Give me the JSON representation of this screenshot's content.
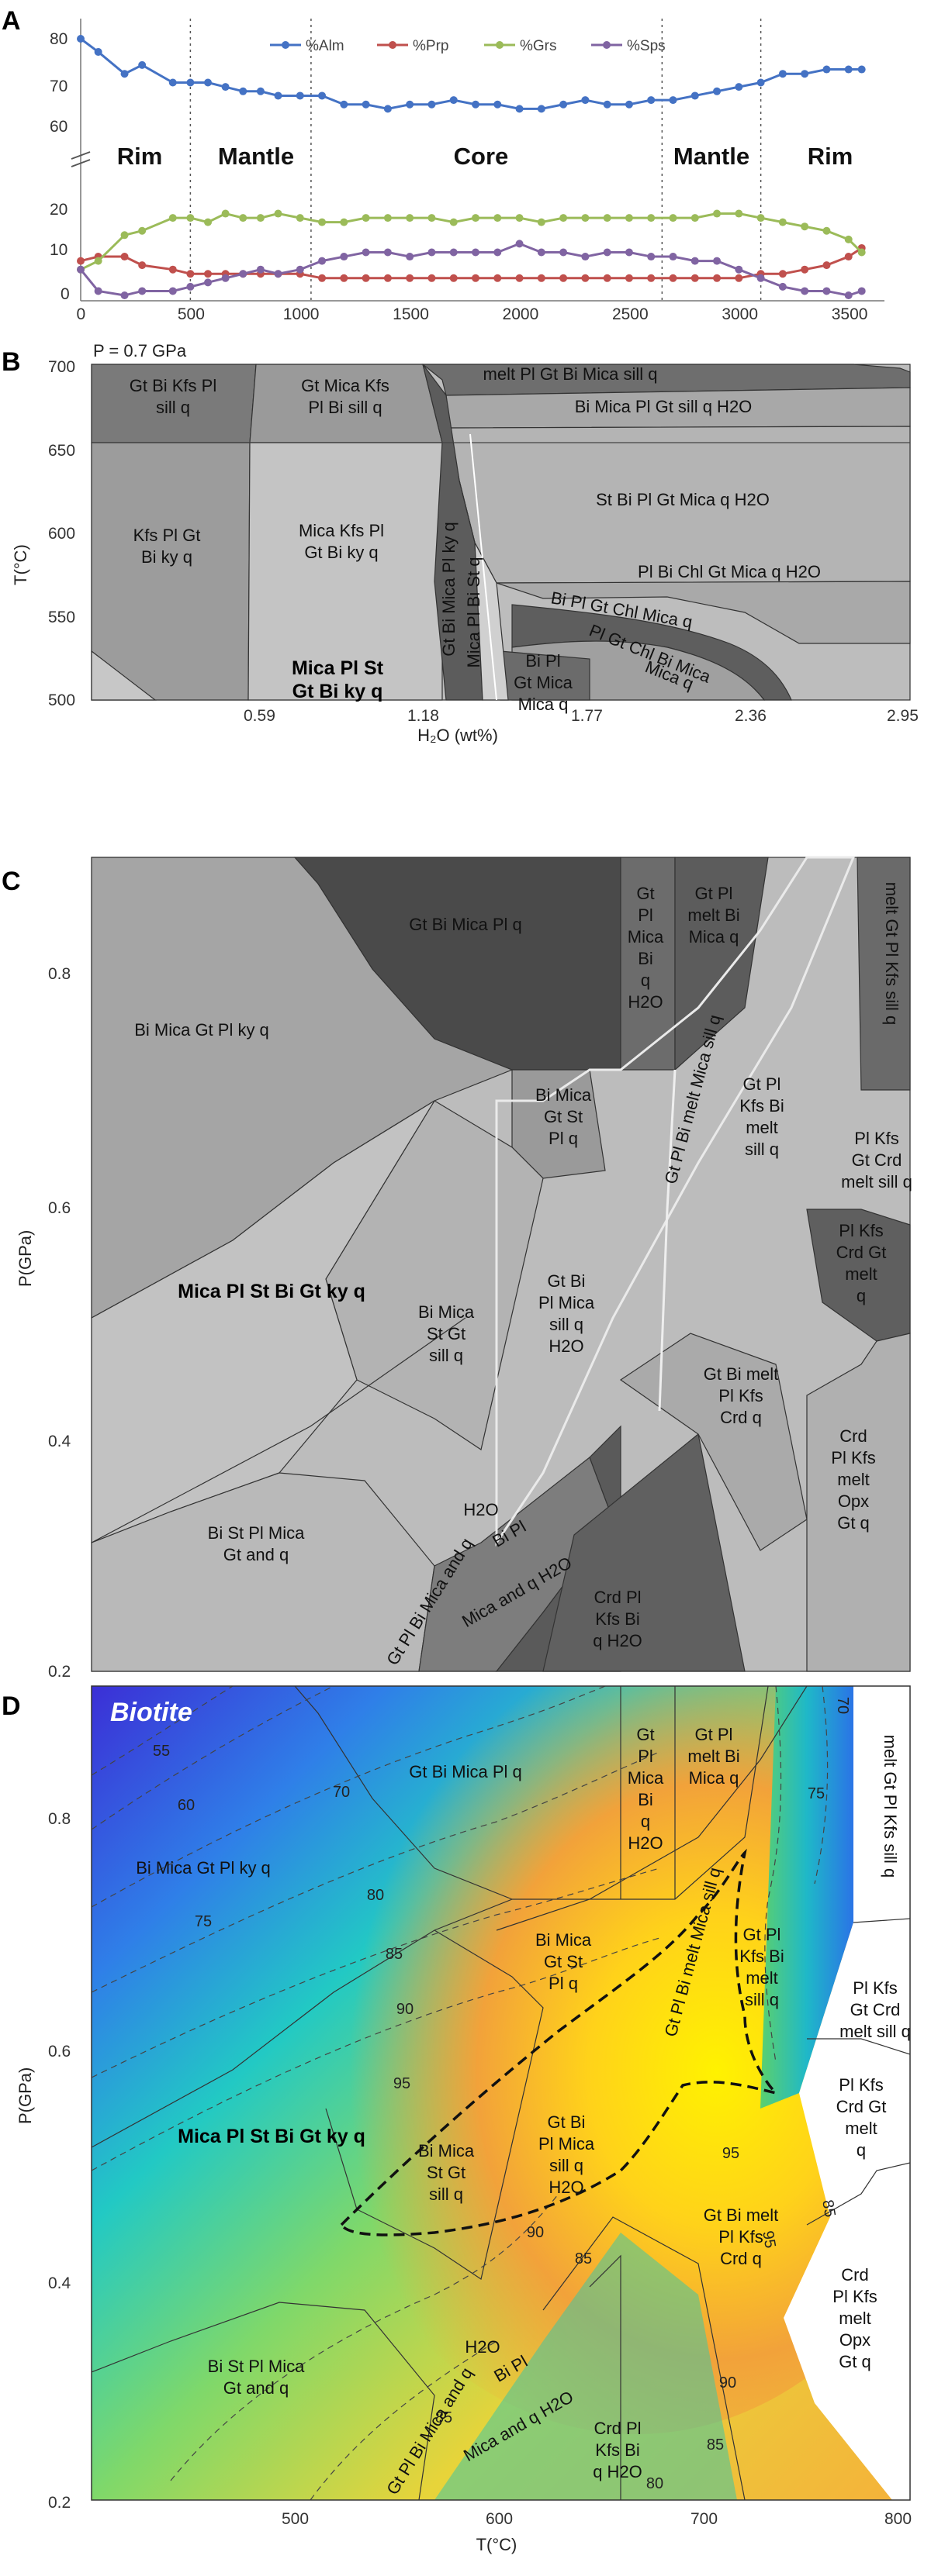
{
  "chart_data": [
    {
      "panel": "A",
      "type": "line",
      "xlabel": "",
      "xlim": [
        0,
        3600
      ],
      "x_ticks": [
        "0",
        "500",
        "1000",
        "1500",
        "2000",
        "2500",
        "3000",
        "3500"
      ],
      "upper_y_ticks": [
        "60",
        "70",
        "80"
      ],
      "lower_y_ticks": [
        "0",
        "10",
        "20"
      ],
      "zones": [
        "Rim",
        "Mantle",
        "Core",
        "Mantle",
        "Rim"
      ],
      "zone_boundaries": [
        500,
        1050,
        2650,
        3100
      ],
      "x": [
        0,
        80,
        200,
        280,
        420,
        500,
        580,
        660,
        740,
        820,
        900,
        1000,
        1100,
        1200,
        1300,
        1400,
        1500,
        1600,
        1700,
        1800,
        1900,
        2000,
        2100,
        2200,
        2300,
        2400,
        2500,
        2600,
        2700,
        2800,
        2900,
        3000,
        3100,
        3200,
        3300,
        3400,
        3500,
        3560
      ],
      "series": [
        {
          "name": "%Alm",
          "color": "#4472c4",
          "values": [
            80,
            77,
            72,
            74,
            70,
            70,
            70,
            69,
            68,
            68,
            67,
            67,
            67,
            65,
            65,
            64,
            65,
            65,
            66,
            65,
            65,
            64,
            64,
            65,
            66,
            65,
            65,
            66,
            66,
            67,
            68,
            69,
            70,
            72,
            72,
            73,
            73,
            73
          ]
        },
        {
          "name": "%Prp",
          "color": "#c0504d",
          "values": [
            8,
            9,
            9,
            7,
            6,
            5,
            5,
            5,
            5,
            5,
            5,
            5,
            4,
            4,
            4,
            4,
            4,
            4,
            4,
            4,
            4,
            4,
            4,
            4,
            4,
            4,
            4,
            4,
            4,
            4,
            4,
            4,
            5,
            5,
            6,
            7,
            9,
            11
          ]
        },
        {
          "name": "%Grs",
          "color": "#9bbb59",
          "values": [
            6,
            8,
            14,
            15,
            18,
            18,
            17,
            19,
            18,
            18,
            19,
            18,
            17,
            17,
            18,
            18,
            18,
            18,
            17,
            18,
            18,
            18,
            17,
            18,
            18,
            18,
            18,
            18,
            18,
            18,
            19,
            19,
            18,
            17,
            16,
            15,
            13,
            10
          ]
        },
        {
          "name": "%Sps",
          "color": "#8064a2",
          "values": [
            6,
            1,
            0,
            1,
            1,
            2,
            3,
            4,
            5,
            6,
            5,
            6,
            8,
            9,
            10,
            10,
            9,
            10,
            10,
            10,
            10,
            12,
            10,
            10,
            9,
            10,
            10,
            9,
            9,
            8,
            8,
            6,
            4,
            2,
            1,
            1,
            0,
            1
          ]
        }
      ]
    },
    {
      "panel": "B",
      "type": "phase-diagram",
      "title": "P = 0.7 GPa",
      "xlabel": "H₂O (wt%)",
      "ylabel": "T(°C)",
      "xlim": [
        0,
        2.95
      ],
      "ylim": [
        500,
        700
      ],
      "x_ticks": [
        "0.59",
        "1.18",
        "1.77",
        "2.36",
        "2.95"
      ],
      "y_ticks": [
        "500",
        "550",
        "600",
        "650",
        "700"
      ],
      "fields": [
        "Gt Bi Kfs Pl",
        "sill q",
        "Gt Mica Kfs",
        "Pl Bi sill q",
        "melt Pl Gt Bi Mica sill q",
        "Bi Mica Pl Gt sill q H2O",
        "St Bi Pl Gt Mica q H2O",
        "Kfs Pl Gt",
        "Bi ky q",
        "Mica Kfs Pl",
        "Gt Bi ky q",
        "Pl Bi Chl Gt Mica q H2O",
        "Bi Pl Gt Chl Mica q",
        "Pl Gt Chl Bi Mica",
        "Mica q",
        "Bi Pl",
        "Gt Mica",
        "Mica q",
        "Gt Bi Mica Pl ky q",
        "Mica Pl Bi St q",
        "Mica Pl St",
        "Gt Bi ky q"
      ]
    },
    {
      "panel": "C",
      "type": "phase-diagram",
      "xlabel": "",
      "ylabel": "P(GPa)",
      "xlim": [
        400,
        800
      ],
      "ylim": [
        0.2,
        0.9
      ],
      "y_ticks": [
        "0.2",
        "0.4",
        "0.6",
        "0.8"
      ],
      "fields": [
        "Gt Bi Mica Pl q",
        "Gt",
        "Pl",
        "Mica",
        "Bi",
        "q",
        "H2O",
        "Gt Pl",
        "melt Bi",
        "Mica q",
        "melt Gt Pl Kfs sill q",
        "Bi Mica Gt Pl ky q",
        "Bi Mica",
        "Gt St",
        "Pl q",
        "Gt Pl Bi melt Mica sill q",
        "Gt Pl",
        "Kfs Bi",
        "melt",
        "sill q",
        "Pl Kfs",
        "Gt Crd",
        "melt sill q",
        "Pl Kfs",
        "Crd Gt",
        "melt",
        "q",
        "Mica Pl St Bi Gt ky q",
        "Gt Bi",
        "Pl Mica",
        "sill q",
        "H2O",
        "Bi Mica",
        "St Gt",
        "sill q",
        "Gt Bi melt",
        "Pl Kfs",
        "Crd q",
        "Crd",
        "Pl Kfs",
        "melt",
        "Opx",
        "Gt q",
        "Bi St Pl Mica",
        "Gt and q",
        "Gt Pl Bi Mica and q",
        "H2O",
        "Bi Pl",
        "Mica and q H2O",
        "Crd Pl",
        "Kfs Bi",
        "q H2O"
      ]
    },
    {
      "panel": "D",
      "type": "heatmap",
      "title": "Biotite",
      "xlabel": "T(°C)",
      "ylabel": "P(GPa)",
      "xlim": [
        400,
        800
      ],
      "ylim": [
        0.2,
        0.9
      ],
      "x_ticks": [
        "500",
        "600",
        "700",
        "800"
      ],
      "y_ticks": [
        "0.2",
        "0.4",
        "0.6",
        "0.8"
      ],
      "contour_labels": [
        "55",
        "60",
        "70",
        "75",
        "80",
        "85",
        "90",
        "95",
        "95",
        "90",
        "85",
        "85",
        "90",
        "85",
        "80",
        "75",
        "70",
        "85",
        "95"
      ],
      "fields": [
        "Gt Bi Mica Pl q",
        "Gt",
        "Pl",
        "Mica",
        "Bi",
        "q",
        "H2O",
        "Gt Pl",
        "melt Bi",
        "Mica q",
        "melt Gt Pl Kfs sill q",
        "Bi Mica Gt Pl ky q",
        "Bi Mica",
        "Gt St",
        "Pl q",
        "Gt Pl Bi melt Mica sill q",
        "Gt Pl",
        "Kfs Bi",
        "melt",
        "sill q",
        "Pl Kfs",
        "Gt Crd",
        "melt sill q",
        "Pl Kfs",
        "Crd Gt",
        "melt",
        "q",
        "Mica Pl St Bi Gt ky q",
        "Gt Bi",
        "Pl Mica",
        "sill q",
        "H2O",
        "Bi Mica",
        "St Gt",
        "sill q",
        "Gt Bi melt",
        "Pl Kfs",
        "Crd q",
        "Crd",
        "Pl Kfs",
        "melt",
        "Opx",
        "Gt q",
        "Bi St Pl Mica",
        "Gt and q",
        "Gt Pl Bi Mica and q",
        "H2O",
        "Bi Pl",
        "Mica and q H2O",
        "Crd Pl",
        "Kfs Bi",
        "q H2O"
      ]
    }
  ],
  "panel_letters": [
    "A",
    "B",
    "C",
    "D"
  ]
}
